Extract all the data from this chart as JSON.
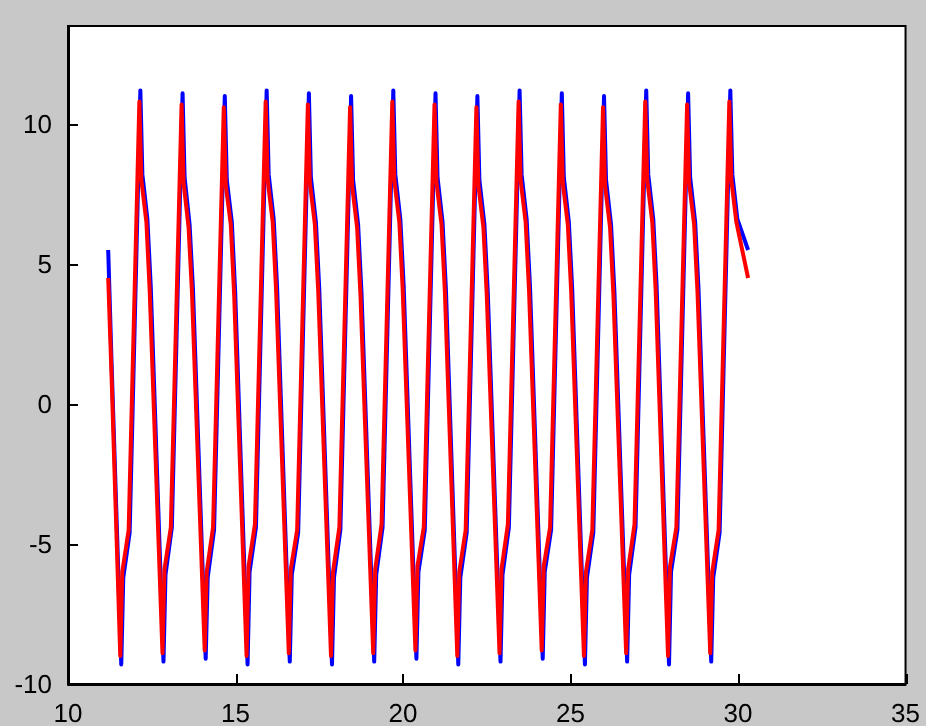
{
  "chart_data": {
    "type": "line",
    "xlim": [
      10,
      35
    ],
    "xticks": [
      10,
      15,
      20,
      25,
      30,
      35
    ],
    "ylim": [
      -10,
      13.5
    ],
    "yticks": [
      -10,
      -5,
      0,
      5,
      10
    ],
    "grid": false,
    "marker": "none",
    "line_style": "solid",
    "series": [
      {
        "color": "#0000ff",
        "x": [
          11.2,
          11.3,
          11.59,
          11.65,
          11.84,
          12.16,
          12.22,
          12.37,
          12.47,
          12.85,
          12.91,
          13.1,
          13.42,
          13.48,
          13.63,
          13.73,
          14.11,
          14.17,
          14.36,
          14.68,
          14.74,
          14.89,
          14.99,
          15.36,
          15.42,
          15.61,
          15.93,
          15.99,
          16.14,
          16.24,
          16.62,
          16.68,
          16.87,
          17.19,
          17.25,
          17.4,
          17.5,
          17.88,
          17.94,
          18.13,
          18.45,
          18.51,
          18.66,
          18.76,
          19.14,
          19.2,
          19.39,
          19.71,
          19.77,
          19.92,
          20.02,
          20.4,
          20.46,
          20.65,
          20.97,
          21.03,
          21.18,
          21.28,
          21.65,
          21.71,
          21.9,
          22.22,
          22.28,
          22.43,
          22.53,
          22.91,
          22.97,
          23.16,
          23.48,
          23.54,
          23.69,
          23.79,
          24.17,
          24.23,
          24.42,
          24.74,
          24.8,
          24.95,
          25.05,
          25.43,
          25.49,
          25.68,
          26,
          26.06,
          26.21,
          26.31,
          26.69,
          26.75,
          26.94,
          27.26,
          27.32,
          27.47,
          27.57,
          27.94,
          28,
          28.19,
          28.51,
          28.57,
          28.72,
          28.82,
          29.2,
          29.26,
          29.45,
          29.77,
          29.83,
          29.98,
          30.3
        ],
        "values": [
          5.5,
          1.5,
          -9.3,
          -6.2,
          -4.6,
          11.2,
          8.2,
          6.6,
          4.2,
          -9.2,
          -6.1,
          -4.4,
          11.1,
          8.1,
          6.4,
          4.1,
          -9.1,
          -6.2,
          -4.5,
          11.0,
          8.0,
          6.5,
          4.0,
          -9.3,
          -6.0,
          -4.4,
          11.2,
          8.2,
          6.6,
          4.2,
          -9.2,
          -6.1,
          -4.6,
          11.1,
          8.1,
          6.5,
          4.1,
          -9.3,
          -6.2,
          -4.5,
          11.0,
          8.0,
          6.4,
          4.0,
          -9.2,
          -6.1,
          -4.4,
          11.2,
          8.2,
          6.6,
          4.2,
          -9.1,
          -6.0,
          -4.5,
          11.1,
          8.1,
          6.5,
          4.1,
          -9.3,
          -6.2,
          -4.6,
          11.0,
          8.0,
          6.4,
          4.0,
          -9.2,
          -6.1,
          -4.4,
          11.2,
          8.2,
          6.6,
          4.2,
          -9.1,
          -6.0,
          -4.5,
          11.1,
          8.1,
          6.5,
          4.1,
          -9.3,
          -6.2,
          -4.6,
          11.0,
          8.0,
          6.4,
          4.0,
          -9.2,
          -6.1,
          -4.4,
          11.2,
          8.2,
          6.6,
          4.2,
          -9.3,
          -6.0,
          -4.5,
          11.1,
          8.1,
          6.5,
          4.1,
          -9.2,
          -6.2,
          -4.6,
          11.2,
          8.2,
          6.6,
          5.5
        ]
      },
      {
        "color": "#ff0000",
        "x": [
          11.2,
          11.3,
          11.56,
          11.62,
          11.81,
          12.13,
          12.19,
          12.34,
          12.44,
          12.82,
          12.88,
          13.07,
          13.39,
          13.45,
          13.6,
          13.7,
          14.08,
          14.14,
          14.33,
          14.65,
          14.71,
          14.86,
          14.96,
          15.33,
          15.39,
          15.58,
          15.9,
          15.96,
          16.11,
          16.21,
          16.59,
          16.65,
          16.84,
          17.16,
          17.22,
          17.37,
          17.47,
          17.85,
          17.91,
          18.1,
          18.42,
          18.48,
          18.63,
          18.73,
          19.11,
          19.17,
          19.36,
          19.68,
          19.74,
          19.89,
          19.99,
          20.37,
          20.43,
          20.62,
          20.94,
          21,
          21.15,
          21.25,
          21.62,
          21.68,
          21.87,
          22.19,
          22.25,
          22.4,
          22.5,
          22.88,
          22.94,
          23.13,
          23.45,
          23.51,
          23.66,
          23.76,
          24.14,
          24.2,
          24.39,
          24.71,
          24.77,
          24.92,
          25.02,
          25.4,
          25.46,
          25.65,
          25.97,
          26.03,
          26.18,
          26.28,
          26.66,
          26.72,
          26.91,
          27.23,
          27.29,
          27.44,
          27.54,
          27.91,
          27.97,
          28.16,
          28.48,
          28.54,
          28.69,
          28.79,
          29.17,
          29.23,
          29.42,
          29.74,
          29.8,
          29.95,
          30.3
        ],
        "values": [
          4.5,
          1,
          -9,
          -6,
          -4.5,
          10.8,
          8,
          6.5,
          4,
          -8.9,
          -5.9,
          -4.4,
          10.7,
          7.9,
          6.3,
          4,
          -8.8,
          -6,
          -4.4,
          10.6,
          7.8,
          6.4,
          3.9,
          -9,
          -5.8,
          -4.3,
          10.8,
          8,
          6.5,
          4.1,
          -8.9,
          -5.9,
          -4.5,
          10.7,
          7.9,
          6.4,
          4,
          -9,
          -6,
          -4.4,
          10.6,
          7.8,
          6.3,
          3.9,
          -8.9,
          -5.9,
          -4.3,
          10.8,
          8,
          6.5,
          4.1,
          -8.8,
          -5.8,
          -4.4,
          10.7,
          7.9,
          6.4,
          4,
          -9,
          -6,
          -4.5,
          10.6,
          7.8,
          6.3,
          3.9,
          -8.9,
          -5.9,
          -4.3,
          10.8,
          8,
          6.5,
          4.1,
          -8.8,
          -5.8,
          -4.4,
          10.7,
          7.9,
          6.4,
          4,
          -9,
          -6,
          -4.5,
          10.6,
          7.8,
          6.3,
          3.9,
          -8.9,
          -5.9,
          -4.3,
          10.8,
          8,
          6.5,
          4.1,
          -9,
          -5.8,
          -4.4,
          10.7,
          7.9,
          6.4,
          4,
          -8.9,
          -6,
          -4.5,
          10.8,
          8,
          6.5,
          4.5
        ]
      }
    ]
  }
}
